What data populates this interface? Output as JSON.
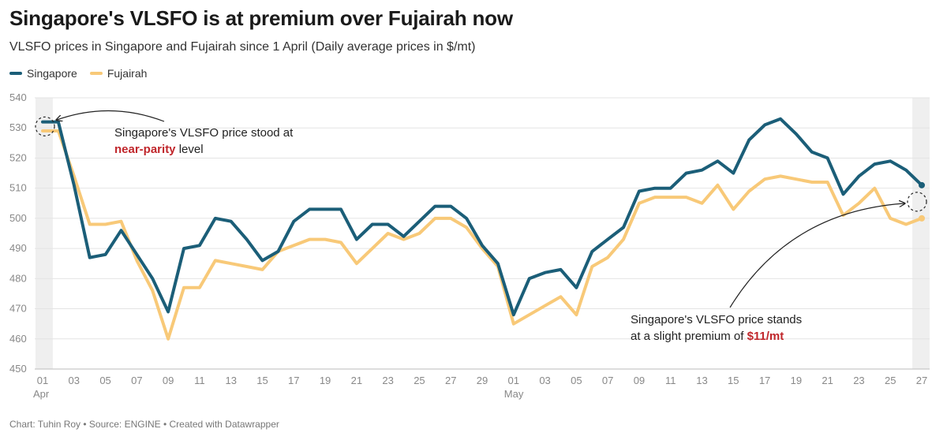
{
  "title": "Singapore's VLSFO is at premium over Fujairah now",
  "subtitle": "VLSFO prices in Singapore and Fujairah since 1 April (Daily average prices in $/mt)",
  "footer": "Chart: Tuhin Roy • Source: ENGINE • Created with Datawrapper",
  "colors": {
    "singapore": "#1b5e78",
    "fujairah": "#f8c978",
    "highlight": "#c0262b",
    "grid": "#e4e4e4",
    "shade": "#efefef"
  },
  "chart_data": {
    "type": "line",
    "title": "Singapore's VLSFO is at premium over Fujairah now",
    "ylim": [
      450,
      540
    ],
    "yticks": [
      450,
      460,
      470,
      480,
      490,
      500,
      510,
      520,
      530,
      540
    ],
    "grid": true,
    "legend": "top-left",
    "x_tick_labels": [
      "01",
      "03",
      "05",
      "07",
      "09",
      "11",
      "13",
      "15",
      "17",
      "19",
      "21",
      "23",
      "25",
      "27",
      "29",
      "01",
      "03",
      "05",
      "07",
      "09",
      "11",
      "13",
      "15",
      "17",
      "19",
      "21",
      "23",
      "25",
      "27"
    ],
    "month_labels": [
      {
        "label": "Apr",
        "at": "01"
      },
      {
        "label": "May",
        "at": "01"
      }
    ],
    "x": [
      "Apr 1",
      "Apr 2",
      "Apr 3",
      "Apr 4",
      "Apr 5",
      "Apr 6",
      "Apr 7",
      "Apr 8",
      "Apr 9",
      "Apr 10",
      "Apr 11",
      "Apr 12",
      "Apr 13",
      "Apr 14",
      "Apr 15",
      "Apr 16",
      "Apr 17",
      "Apr 18",
      "Apr 19",
      "Apr 20",
      "Apr 21",
      "Apr 22",
      "Apr 23",
      "Apr 24",
      "Apr 25",
      "Apr 26",
      "Apr 27",
      "Apr 28",
      "Apr 29",
      "Apr 30",
      "May 1",
      "May 2",
      "May 3",
      "May 4",
      "May 5",
      "May 6",
      "May 7",
      "May 8",
      "May 9",
      "May 10",
      "May 11",
      "May 12",
      "May 13",
      "May 14",
      "May 15",
      "May 16",
      "May 17",
      "May 18",
      "May 19",
      "May 20",
      "May 21",
      "May 22",
      "May 23",
      "May 24",
      "May 25",
      "May 26",
      "May 27"
    ],
    "series": [
      {
        "name": "Singapore",
        "values": [
          532,
          532,
          511,
          487,
          488,
          496,
          488,
          480,
          469,
          490,
          491,
          500,
          499,
          493,
          486,
          489,
          499,
          503,
          503,
          503,
          493,
          498,
          498,
          494,
          499,
          504,
          504,
          500,
          491,
          485,
          468,
          480,
          482,
          483,
          477,
          489,
          493,
          497,
          509,
          510,
          510,
          515,
          516,
          519,
          515,
          526,
          531,
          533,
          528,
          522,
          520,
          508,
          514,
          518,
          519,
          516,
          511
        ]
      },
      {
        "name": "Fujairah",
        "values": [
          529,
          529,
          514,
          498,
          498,
          499,
          486,
          476,
          460,
          477,
          477,
          486,
          485,
          484,
          483,
          489,
          491,
          493,
          493,
          492,
          485,
          490,
          495,
          493,
          495,
          500,
          500,
          497,
          490,
          484,
          465,
          468,
          471,
          474,
          468,
          484,
          487,
          493,
          505,
          507,
          507,
          507,
          505,
          511,
          503,
          509,
          513,
          514,
          513,
          512,
          512,
          501,
          505,
          510,
          500,
          498,
          500
        ]
      }
    ],
    "annotations": [
      {
        "lines": [
          [
            {
              "text": "Singapore's VLSFO price stood at"
            }
          ],
          [
            {
              "text": "near-parity",
              "highlight": true
            },
            {
              "text": " level"
            }
          ]
        ]
      },
      {
        "lines": [
          [
            {
              "text": "Singapore's VLSFO price stands"
            }
          ],
          [
            {
              "text": "at a slight premium of "
            },
            {
              "text": "$11/mt",
              "highlight": true
            }
          ]
        ]
      }
    ]
  }
}
